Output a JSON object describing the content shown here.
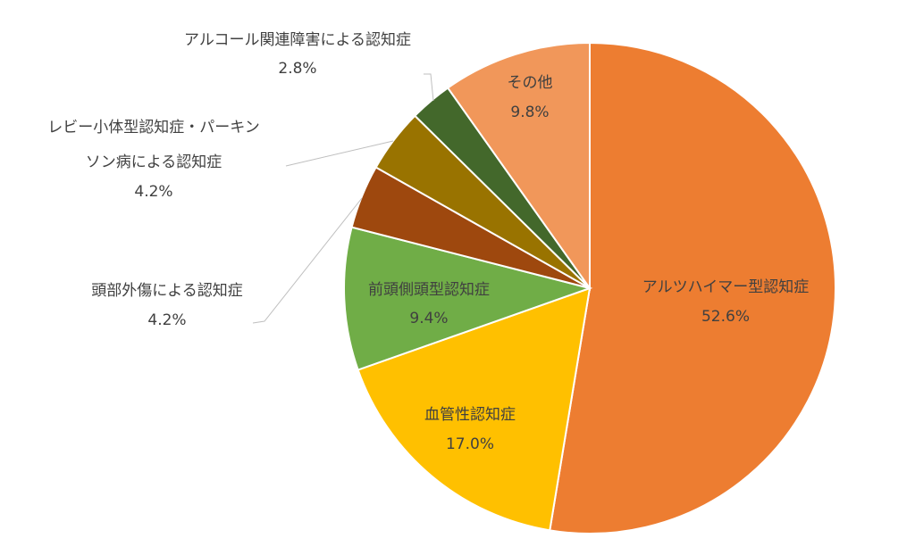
{
  "chart_data": {
    "type": "pie",
    "title": "",
    "start": "top",
    "direction": "clockwise",
    "slices": [
      {
        "label": "アルツハイマー型認知症",
        "value": 52.6,
        "value_label": "52.6%",
        "color": "#ED7D31"
      },
      {
        "label": "血管性認知症",
        "value": 17.0,
        "value_label": "17.0%",
        "color": "#FFC000"
      },
      {
        "label": "前頭側頭型認知症",
        "value": 9.4,
        "value_label": "9.4%",
        "color": "#70AD47"
      },
      {
        "label": "頭部外傷による認知症",
        "value": 4.2,
        "value_label": "4.2%",
        "color": "#9E480E"
      },
      {
        "label": "レビー小体型認知症・パーキンソン病による認知症",
        "label_lines": [
          "レビー小体型認知症・パーキン",
          "ソン病による認知症"
        ],
        "value": 4.2,
        "value_label": "4.2%",
        "color": "#997300"
      },
      {
        "label": "アルコール関連障害による認知症",
        "value": 2.8,
        "value_label": "2.8%",
        "color": "#43682B"
      },
      {
        "label": "その他",
        "value": 9.8,
        "value_label": "9.8%",
        "color": "#F1975A"
      }
    ]
  }
}
